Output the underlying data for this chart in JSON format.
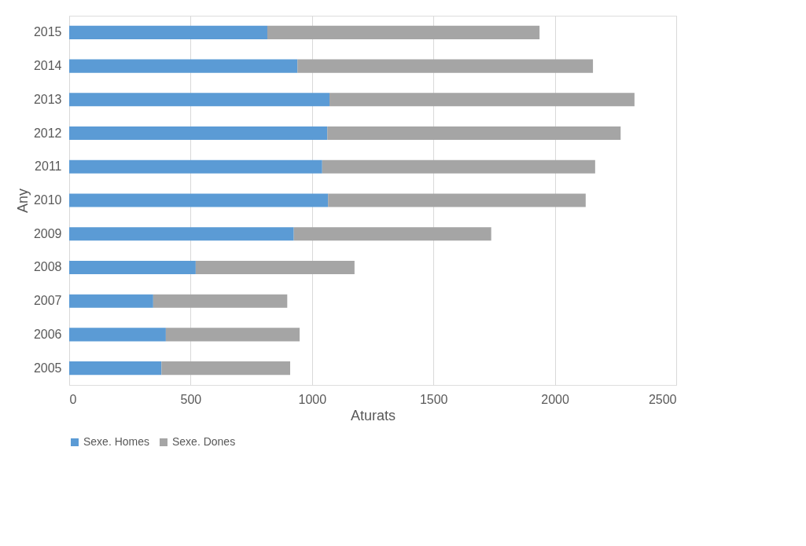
{
  "chart_data": {
    "type": "bar",
    "orientation": "horizontal",
    "stacked": true,
    "xlabel": "Aturats",
    "ylabel": "Any",
    "categories": [
      "2015",
      "2014",
      "2013",
      "2012",
      "2011",
      "2010",
      "2009",
      "2008",
      "2007",
      "2006",
      "2005"
    ],
    "series": [
      {
        "name": "Sexe. Homes",
        "color": "#5b9bd5",
        "values": [
          816,
          940,
          1072,
          1063,
          1042,
          1066,
          925,
          521,
          346,
          398,
          380
        ]
      },
      {
        "name": "Sexe. Dones",
        "color": "#a5a5a5",
        "values": [
          1121,
          1217,
          1256,
          1208,
          1124,
          1061,
          813,
          654,
          552,
          551,
          530
        ]
      }
    ],
    "xlim": [
      0,
      2500
    ],
    "xticks": [
      0,
      500,
      1000,
      1500,
      2000,
      2500
    ],
    "grid": "x",
    "legend": "bottom"
  }
}
